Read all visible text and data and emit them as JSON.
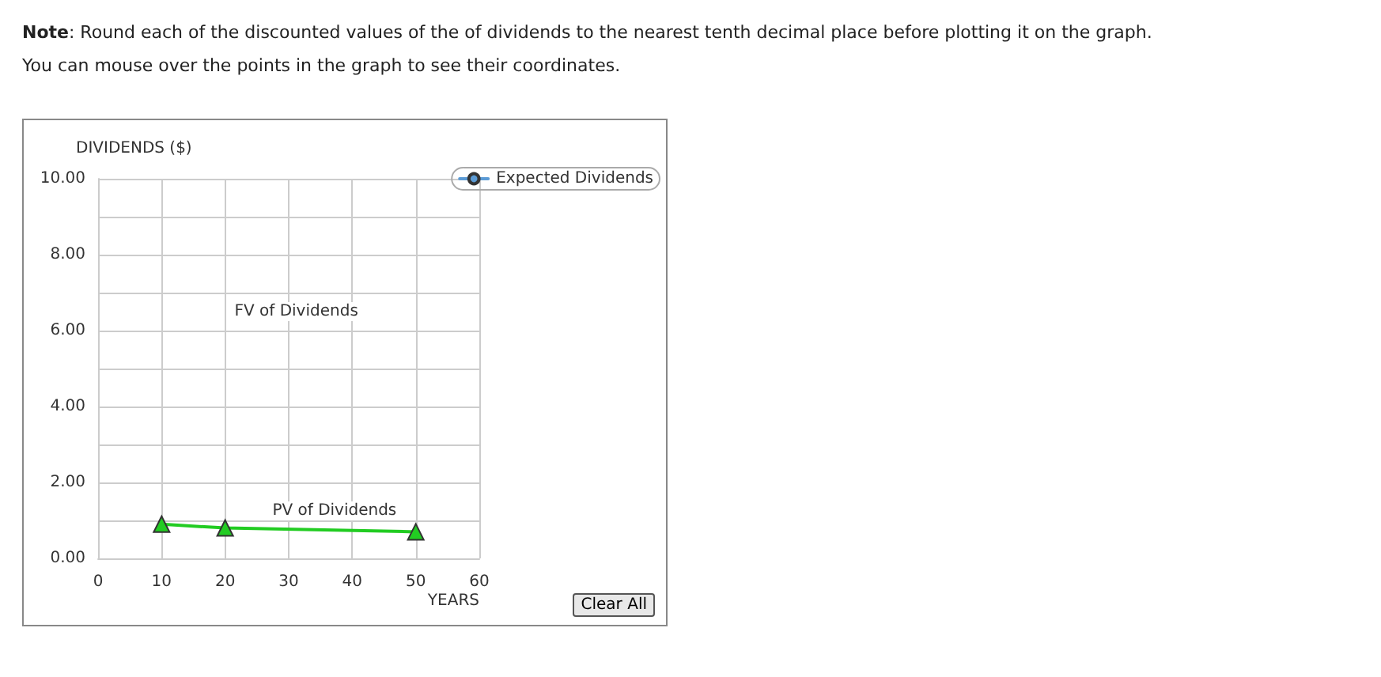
{
  "chart_data": {
    "type": "line",
    "ylabel": "DIVIDENDS ($)",
    "xlabel": "YEARS",
    "annotations": [
      "Note: Round each of the discounted values of the of dividends to the nearest tenth decimal place before plotting it on the graph. You can mouse over the points in the graph to see their coordinates.",
      "FV of Dividends",
      "PV of Dividends",
      "Clear All"
    ],
    "x": [
      10,
      20,
      50
    ],
    "series": [
      {
        "color": "#22cc22",
        "values": [
          0.9,
          0.8,
          0.7
        ],
        "marker": "triangle"
      },
      {
        "name": "Expected Dividends",
        "color": "#5b9bd5",
        "values": [
          null,
          null,
          null
        ],
        "marker": "circle"
      }
    ],
    "xlim": [
      0,
      60
    ],
    "xticks": [
      0,
      10,
      20,
      30,
      40,
      50,
      60
    ],
    "ylim": [
      0,
      10
    ],
    "yticks": [
      {
        "value": 0,
        "label": "0.00"
      },
      {
        "value": 2,
        "label": "2.00"
      },
      {
        "value": 4,
        "label": "4.00"
      },
      {
        "value": 6,
        "label": "6.00"
      },
      {
        "value": 8,
        "label": "8.00"
      },
      {
        "value": 10,
        "label": "10.00"
      }
    ],
    "grid": true,
    "legend": "top right",
    "line_style": "solid"
  }
}
